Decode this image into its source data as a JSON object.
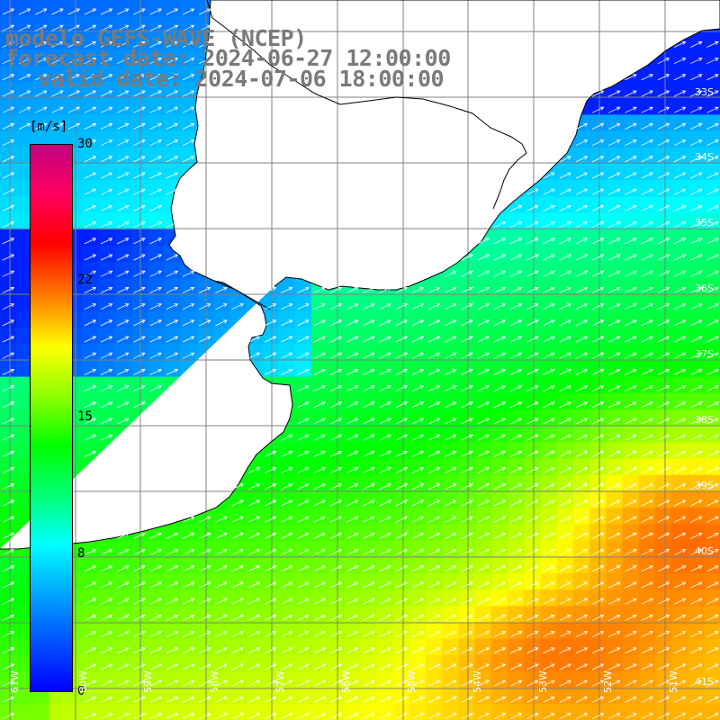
{
  "title": {
    "line1": "modelo GEFS-WAVE (NCEP)",
    "line2": "forecast date: 2024-06-27 12:00:00",
    "line3": "valid date: 2024-07-06 18:00:00"
  },
  "colorbar": {
    "unit": "[m/s]",
    "min": 0,
    "max": 30,
    "ticks": [
      "30",
      "22",
      "15",
      "8",
      "0"
    ],
    "tick_values": [
      30,
      22,
      15,
      8,
      0
    ]
  },
  "lat_labels": [
    "33S",
    "34S",
    "35S",
    "36S",
    "37S",
    "38S",
    "39S",
    "40S",
    "41S"
  ],
  "lon_labels": [
    "61W",
    "60W",
    "59W",
    "58W",
    "57W",
    "56W",
    "55W",
    "54W",
    "53W",
    "52W",
    "51W"
  ],
  "colors": {
    "land": "#ffffff",
    "grid": "#808080",
    "coast": "#000000",
    "arrow": "#ffffff",
    "title": "#7a7a7a"
  }
}
